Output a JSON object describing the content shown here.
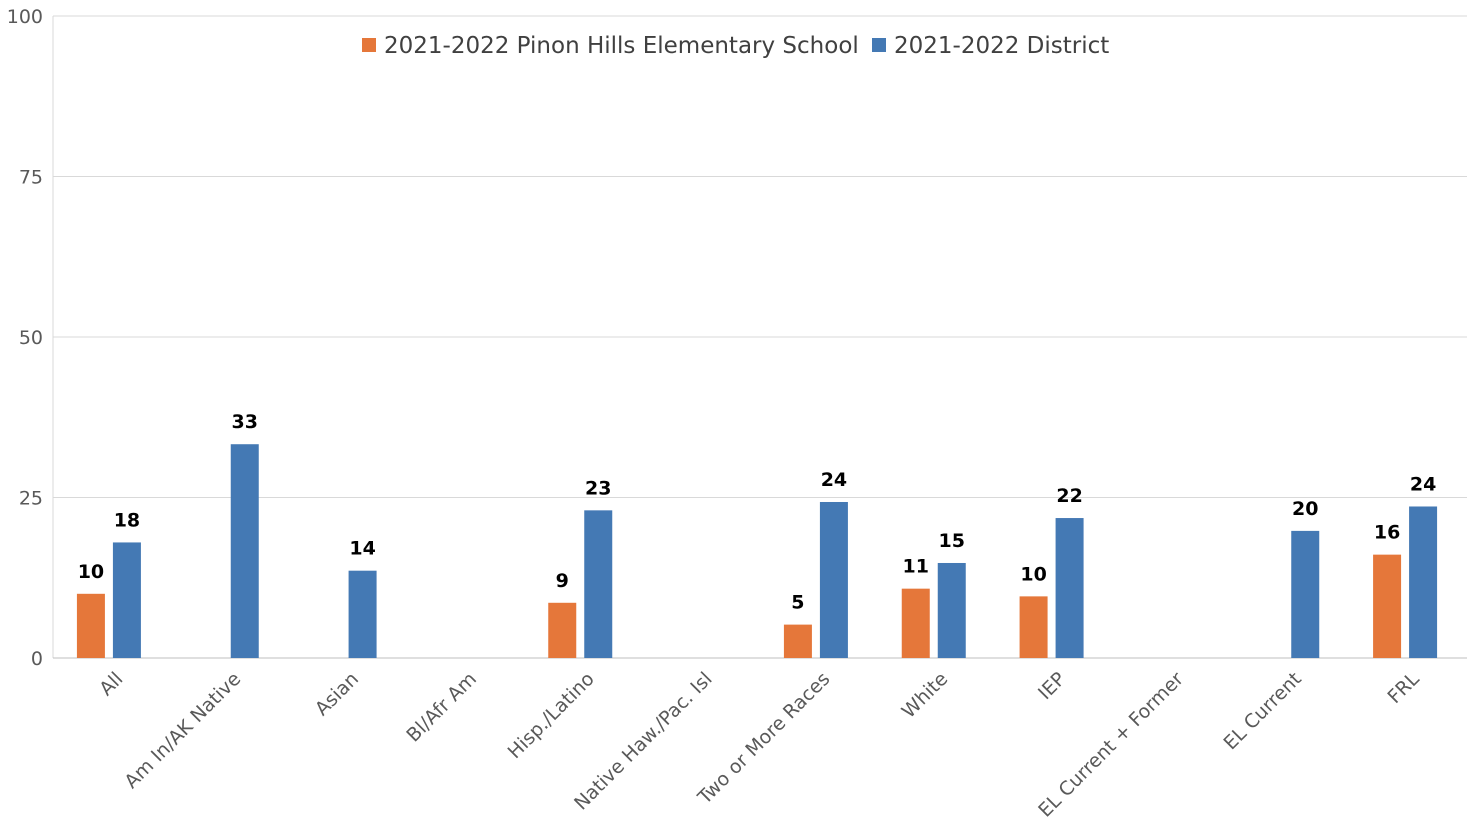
{
  "chart_data": {
    "type": "bar",
    "title": "",
    "xlabel": "",
    "ylabel": "",
    "ylim": [
      0,
      100
    ],
    "yticks": [
      0,
      25,
      50,
      75,
      100
    ],
    "grid": true,
    "legend_position": "top-center",
    "categories": [
      "All",
      "Am In/AK Native",
      "Asian",
      "Bl/Afr Am",
      "Hisp./Latino",
      "Native Haw./Pac. Isl",
      "Two or More Races",
      "White",
      "IEP",
      "EL Current + Former",
      "EL Current",
      "FRL"
    ],
    "series": [
      {
        "name": "2021-2022 Pinon Hills Elementary School",
        "color": "#e5773a",
        "values": [
          10,
          null,
          null,
          null,
          8.6,
          null,
          5.2,
          10.8,
          9.6,
          null,
          null,
          16.1
        ],
        "labels": [
          "10",
          "",
          "",
          "",
          "9",
          "",
          "5",
          "11",
          "10",
          "",
          "",
          "16"
        ]
      },
      {
        "name": "2021-2022 District",
        "color": "#4479b4",
        "values": [
          18,
          33.3,
          13.6,
          null,
          23,
          null,
          24.3,
          14.8,
          21.8,
          null,
          19.8,
          23.6
        ],
        "labels": [
          "18",
          "33",
          "14",
          "",
          "23",
          "",
          "24",
          "15",
          "22",
          "",
          "20",
          "24"
        ]
      }
    ]
  }
}
